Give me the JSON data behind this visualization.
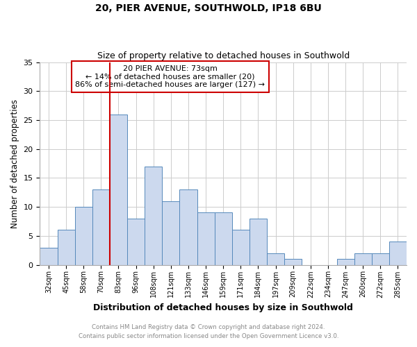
{
  "title1": "20, PIER AVENUE, SOUTHWOLD, IP18 6BU",
  "title2": "Size of property relative to detached houses in Southwold",
  "xlabel": "Distribution of detached houses by size in Southwold",
  "ylabel": "Number of detached properties",
  "bar_labels": [
    "32sqm",
    "45sqm",
    "58sqm",
    "70sqm",
    "83sqm",
    "96sqm",
    "108sqm",
    "121sqm",
    "133sqm",
    "146sqm",
    "159sqm",
    "171sqm",
    "184sqm",
    "197sqm",
    "209sqm",
    "222sqm",
    "234sqm",
    "247sqm",
    "260sqm",
    "272sqm",
    "285sqm"
  ],
  "bar_values": [
    3,
    6,
    10,
    13,
    26,
    8,
    17,
    11,
    13,
    9,
    9,
    6,
    8,
    2,
    1,
    0,
    0,
    1,
    2,
    2,
    4
  ],
  "bar_color": "#ccd9ee",
  "bar_edge_color": "#5588bb",
  "ylim": [
    0,
    35
  ],
  "yticks": [
    0,
    5,
    10,
    15,
    20,
    25,
    30,
    35
  ],
  "vline_color": "#cc0000",
  "annotation_title": "20 PIER AVENUE: 73sqm",
  "annotation_line1": "← 14% of detached houses are smaller (20)",
  "annotation_line2": "86% of semi-detached houses are larger (127) →",
  "annotation_box_color": "#cc0000",
  "footer1": "Contains HM Land Registry data © Crown copyright and database right 2024.",
  "footer2": "Contains public sector information licensed under the Open Government Licence v3.0.",
  "bg_color": "#ffffff",
  "grid_color": "#cccccc",
  "footer_color": "#888888"
}
